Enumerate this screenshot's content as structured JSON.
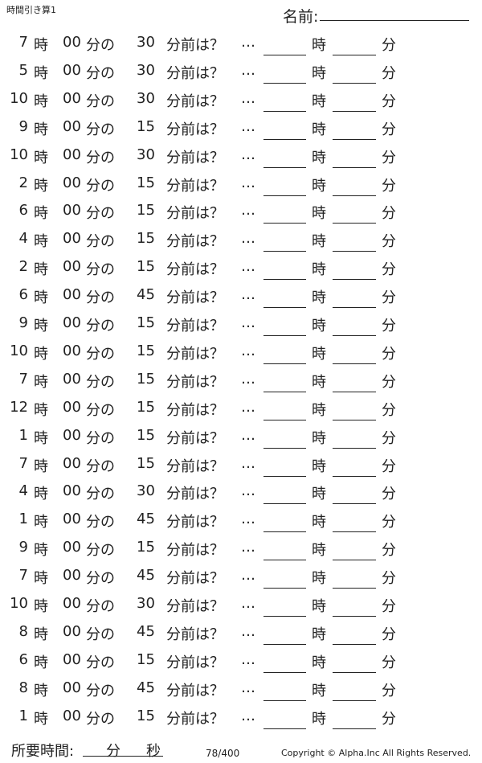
{
  "title": "時間引き算1",
  "name_label": "名前:",
  "labels": {
    "hour": "時",
    "zero_min": "00",
    "fun_no": "分の",
    "question": "分前は？",
    "dots": "…",
    "answer_hour": "時",
    "answer_min": "分"
  },
  "rows": [
    {
      "hour": "7",
      "minus": "30"
    },
    {
      "hour": "5",
      "minus": "30"
    },
    {
      "hour": "10",
      "minus": "30"
    },
    {
      "hour": "9",
      "minus": "15"
    },
    {
      "hour": "10",
      "minus": "30"
    },
    {
      "hour": "2",
      "minus": "15"
    },
    {
      "hour": "6",
      "minus": "15"
    },
    {
      "hour": "4",
      "minus": "15"
    },
    {
      "hour": "2",
      "minus": "15"
    },
    {
      "hour": "6",
      "minus": "45"
    },
    {
      "hour": "9",
      "minus": "15"
    },
    {
      "hour": "10",
      "minus": "15"
    },
    {
      "hour": "7",
      "minus": "15"
    },
    {
      "hour": "12",
      "minus": "15"
    },
    {
      "hour": "1",
      "minus": "15"
    },
    {
      "hour": "7",
      "minus": "15"
    },
    {
      "hour": "4",
      "minus": "30"
    },
    {
      "hour": "1",
      "minus": "45"
    },
    {
      "hour": "9",
      "minus": "15"
    },
    {
      "hour": "7",
      "minus": "45"
    },
    {
      "hour": "10",
      "minus": "30"
    },
    {
      "hour": "8",
      "minus": "45"
    },
    {
      "hour": "6",
      "minus": "15"
    },
    {
      "hour": "8",
      "minus": "45"
    },
    {
      "hour": "1",
      "minus": "15"
    }
  ],
  "footer": {
    "time_label": "所要時間:",
    "min": "分",
    "sec": "秒",
    "page": "78/400",
    "copyright": "Copyright ©  Alpha.Inc All Rights Reserved."
  }
}
